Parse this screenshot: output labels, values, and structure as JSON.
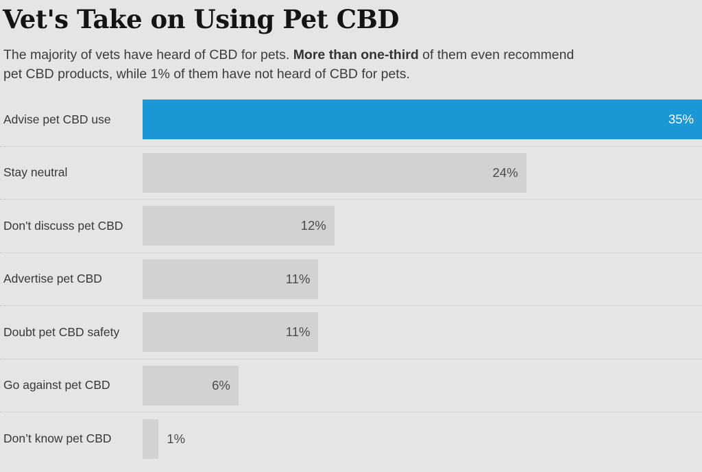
{
  "colors": {
    "background": "#e6e5e5",
    "accent": "#1b97d5",
    "bar": "#d2d2d2",
    "value_on_accent": "#ffffff",
    "value_on_gray": "#4a4a4a",
    "separator": "#c5c5c5"
  },
  "header": {
    "title": "Vet's Take on Using Pet CBD",
    "subtitle": {
      "line1_part1": "The majority of vets have heard of CBD for pets. ",
      "line1_bold": "More than one-third",
      "line1_part2": " of them even recommend",
      "line2": "pet CBD products, while 1% of them have not heard of CBD for pets."
    }
  },
  "chart_data": {
    "type": "bar",
    "orientation": "horizontal",
    "title": "Vet's Take on Using Pet CBD",
    "xlabel": "",
    "ylabel": "",
    "xlim": [
      0,
      35
    ],
    "xmax": 35,
    "grid": false,
    "legend": "none",
    "categories": [
      "Advise pet CBD use",
      "Stay neutral",
      "Don't discuss pet CBD",
      "Advertise pet CBD",
      "Doubt pet CBD safety",
      "Go against pet CBD",
      "Don’t know pet CBD"
    ],
    "values": [
      35,
      24,
      12,
      11,
      11,
      6,
      1
    ],
    "rows": [
      {
        "label": "Advise pet CBD use",
        "value": 35,
        "value_label": "35%",
        "highlight": true,
        "label_position": "inside"
      },
      {
        "label": "Stay neutral",
        "value": 24,
        "value_label": "24%",
        "highlight": false,
        "label_position": "inside"
      },
      {
        "label": "Don't discuss pet CBD",
        "value": 12,
        "value_label": "12%",
        "highlight": false,
        "label_position": "inside"
      },
      {
        "label": "Advertise pet CBD",
        "value": 11,
        "value_label": "11%",
        "highlight": false,
        "label_position": "inside"
      },
      {
        "label": "Doubt pet CBD safety",
        "value": 11,
        "value_label": "11%",
        "highlight": false,
        "label_position": "inside"
      },
      {
        "label": "Go against pet CBD",
        "value": 6,
        "value_label": "6%",
        "highlight": false,
        "label_position": "inside"
      },
      {
        "label": "Don’t know pet CBD",
        "value": 1,
        "value_label": "1%",
        "highlight": false,
        "label_position": "outside"
      }
    ]
  }
}
